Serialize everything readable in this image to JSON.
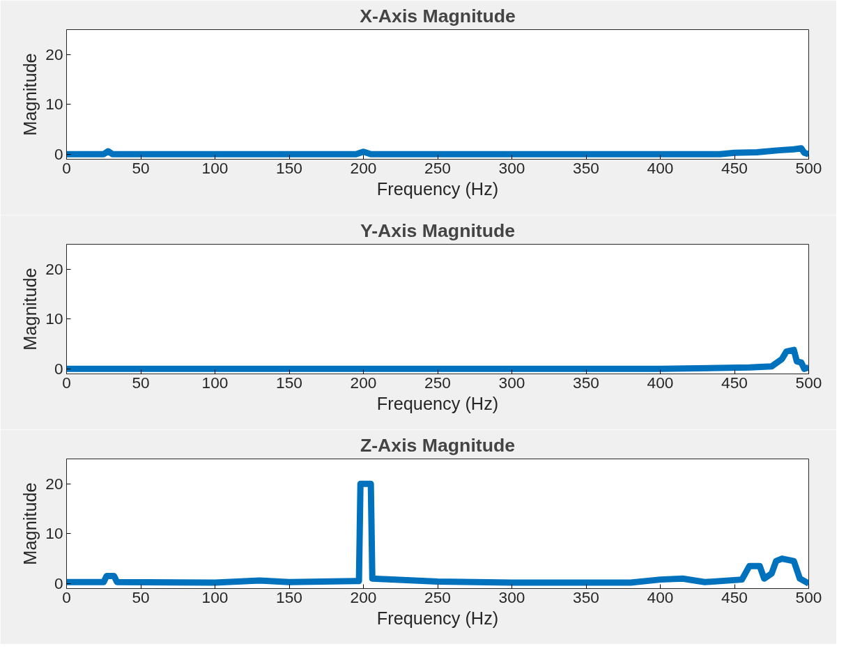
{
  "chart_data": [
    {
      "type": "line",
      "title": "X-Axis Magnitude",
      "xlabel": "Frequency (Hz)",
      "ylabel": "Magnitude",
      "xlim": [
        0,
        500
      ],
      "ylim": [
        -1,
        25
      ],
      "xticks": [
        0,
        50,
        100,
        150,
        200,
        250,
        300,
        350,
        400,
        450,
        500
      ],
      "yticks": [
        0,
        10,
        20
      ],
      "grid": false,
      "x": [
        0,
        25,
        28,
        31,
        100,
        195,
        200,
        205,
        300,
        400,
        440,
        450,
        465,
        480,
        490,
        495,
        497,
        500
      ],
      "series": [
        {
          "color": "#0072bd",
          "values": [
            0,
            0,
            0.6,
            0,
            0,
            0,
            0.5,
            0,
            0,
            0,
            0,
            0.3,
            0.4,
            0.8,
            1,
            1.2,
            0.3,
            0
          ]
        }
      ]
    },
    {
      "type": "line",
      "title": "Y-Axis Magnitude",
      "xlabel": "Frequency (Hz)",
      "ylabel": "Magnitude",
      "xlim": [
        0,
        500
      ],
      "ylim": [
        -1,
        25
      ],
      "xticks": [
        0,
        50,
        100,
        150,
        200,
        250,
        300,
        350,
        400,
        450,
        500
      ],
      "yticks": [
        0,
        10,
        20
      ],
      "grid": false,
      "x": [
        0,
        100,
        200,
        300,
        400,
        460,
        475,
        482,
        485,
        490,
        492,
        495,
        497,
        500
      ],
      "series": [
        {
          "color": "#0072bd",
          "values": [
            0,
            0,
            0,
            0,
            0,
            0.3,
            0.5,
            2,
            3.5,
            3.8,
            1.5,
            1.3,
            0,
            0.3
          ]
        }
      ]
    },
    {
      "type": "line",
      "title": "Z-Axis Magnitude",
      "xlabel": "Frequency (Hz)",
      "ylabel": "Magnitude",
      "xlim": [
        0,
        500
      ],
      "ylim": [
        -1,
        25
      ],
      "xticks": [
        0,
        50,
        100,
        150,
        200,
        250,
        300,
        350,
        400,
        450,
        500
      ],
      "yticks": [
        0,
        10,
        20
      ],
      "grid": false,
      "x": [
        0,
        25,
        27,
        32,
        34,
        100,
        130,
        150,
        197,
        198,
        205,
        206,
        250,
        300,
        380,
        400,
        415,
        430,
        455,
        460,
        467,
        470,
        475,
        478,
        482,
        490,
        494,
        500
      ],
      "series": [
        {
          "color": "#0072bd",
          "values": [
            0.3,
            0.3,
            1.5,
            1.5,
            0.3,
            0.2,
            0.6,
            0.3,
            0.5,
            20,
            20,
            1,
            0.4,
            0.2,
            0.2,
            0.8,
            1,
            0.3,
            0.8,
            3.5,
            3.5,
            1,
            2,
            4.5,
            5,
            4.5,
            1,
            0
          ]
        }
      ]
    }
  ]
}
